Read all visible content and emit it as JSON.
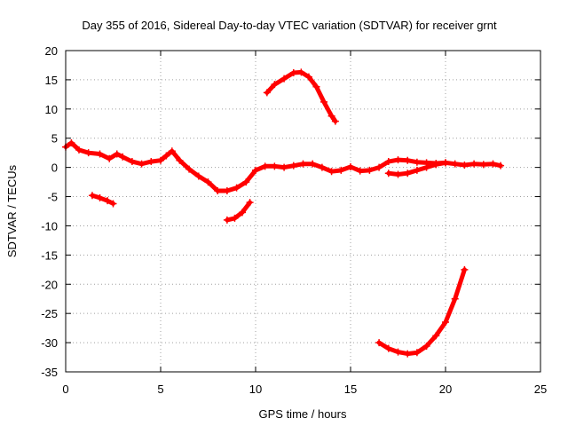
{
  "chart_data": {
    "type": "scatter",
    "title": "Day 355 of 2016, Sidereal Day-to-day VTEC variation (SDTVAR) for receiver grnt",
    "xlabel": "GPS time / hours",
    "ylabel": "SDTVAR / TECUs",
    "xlim": [
      0,
      25
    ],
    "ylim": [
      -35,
      20
    ],
    "xticks": [
      0,
      5,
      10,
      15,
      20,
      25
    ],
    "yticks": [
      20,
      15,
      10,
      5,
      0,
      -5,
      -10,
      -15,
      -20,
      -25,
      -30,
      -35
    ],
    "grid": true,
    "series_color": "#ff0000",
    "series": [
      {
        "name": "main",
        "points": [
          [
            0,
            3.5
          ],
          [
            0.3,
            4.2
          ],
          [
            0.7,
            3.0
          ],
          [
            1.2,
            2.5
          ],
          [
            1.8,
            2.3
          ],
          [
            2.3,
            1.5
          ],
          [
            2.7,
            2.3
          ],
          [
            3.0,
            1.8
          ],
          [
            3.5,
            1.0
          ],
          [
            4.0,
            0.6
          ],
          [
            4.5,
            1.0
          ],
          [
            5.0,
            1.2
          ],
          [
            5.3,
            2.0
          ],
          [
            5.6,
            2.8
          ],
          [
            6.0,
            1.2
          ],
          [
            6.5,
            -0.3
          ],
          [
            7.0,
            -1.5
          ],
          [
            7.5,
            -2.5
          ],
          [
            8.0,
            -4.0
          ],
          [
            8.5,
            -4.0
          ],
          [
            9.0,
            -3.5
          ],
          [
            9.5,
            -2.5
          ],
          [
            10.0,
            -0.5
          ],
          [
            10.5,
            0.2
          ],
          [
            11.0,
            0.2
          ],
          [
            11.5,
            0
          ],
          [
            12.0,
            0.3
          ],
          [
            12.5,
            0.6
          ],
          [
            13.0,
            0.6
          ],
          [
            13.5,
            0
          ],
          [
            14.0,
            -0.7
          ],
          [
            14.5,
            -0.5
          ],
          [
            15.0,
            0.1
          ],
          [
            15.5,
            -0.6
          ],
          [
            16.0,
            -0.5
          ],
          [
            16.5,
            0
          ],
          [
            17.0,
            1.0
          ],
          [
            17.5,
            1.3
          ],
          [
            18.0,
            1.2
          ],
          [
            18.5,
            0.9
          ],
          [
            19.0,
            0.8
          ],
          [
            19.5,
            0.7
          ],
          [
            20.0,
            0.8
          ],
          [
            20.5,
            0.6
          ],
          [
            21.0,
            0.4
          ],
          [
            21.5,
            0.6
          ],
          [
            22.0,
            0.5
          ],
          [
            22.5,
            0.6
          ],
          [
            22.9,
            0.3
          ]
        ]
      },
      {
        "name": "low-1",
        "points": [
          [
            1.4,
            -4.8
          ],
          [
            1.8,
            -5.2
          ],
          [
            2.2,
            -5.7
          ],
          [
            2.5,
            -6.2
          ]
        ]
      },
      {
        "name": "low-2",
        "points": [
          [
            8.5,
            -9.0
          ],
          [
            8.9,
            -8.7
          ],
          [
            9.3,
            -7.7
          ],
          [
            9.7,
            -6.0
          ]
        ]
      },
      {
        "name": "arc-high",
        "points": [
          [
            10.6,
            12.8
          ],
          [
            11.0,
            14.2
          ],
          [
            11.5,
            15.2
          ],
          [
            12.0,
            16.2
          ],
          [
            12.4,
            16.3
          ],
          [
            12.8,
            15.5
          ],
          [
            13.2,
            13.8
          ],
          [
            13.6,
            11.2
          ],
          [
            14.0,
            8.8
          ],
          [
            14.2,
            7.9
          ]
        ]
      },
      {
        "name": "segment-mid",
        "points": [
          [
            17.0,
            -1.0
          ],
          [
            17.5,
            -1.2
          ],
          [
            18.0,
            -1.0
          ],
          [
            18.5,
            -0.5
          ],
          [
            19.0,
            0
          ],
          [
            19.5,
            0.5
          ],
          [
            20.0,
            0.8
          ]
        ]
      },
      {
        "name": "arc-deep",
        "points": [
          [
            16.5,
            -30.0
          ],
          [
            17.0,
            -31.0
          ],
          [
            17.5,
            -31.6
          ],
          [
            18.0,
            -31.9
          ],
          [
            18.5,
            -31.7
          ],
          [
            19.0,
            -30.6
          ],
          [
            19.5,
            -28.8
          ],
          [
            20.0,
            -26.5
          ],
          [
            20.5,
            -22.5
          ],
          [
            21.0,
            -17.5
          ]
        ]
      }
    ]
  }
}
